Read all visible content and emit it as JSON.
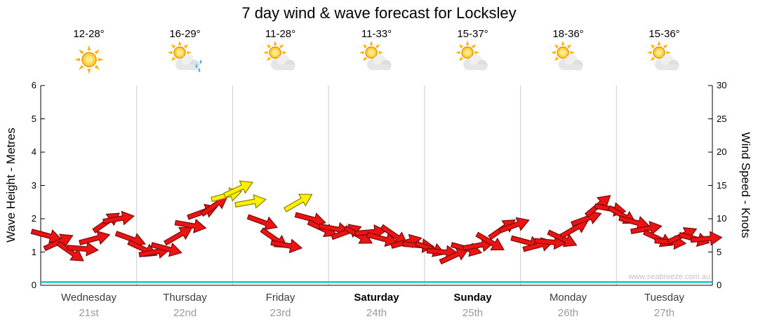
{
  "title": "7 day wind & wave forecast for Locksley",
  "watermark": "www.seabreeze.com.au",
  "axes": {
    "left_label": "Wave Height - Metres",
    "right_label": "Wind Speed - Knots",
    "left_ticks": [
      "0",
      "1",
      "2",
      "3",
      "4",
      "5",
      "6"
    ],
    "right_ticks": [
      "0",
      "5",
      "10",
      "15",
      "20",
      "25",
      "30"
    ]
  },
  "days": [
    {
      "name": "Wednesday",
      "date": "21st",
      "temp": "12-28°",
      "icon": "sun",
      "weekend": false
    },
    {
      "name": "Thursday",
      "date": "22nd",
      "temp": "16-29°",
      "icon": "sun-cloud-rain",
      "weekend": false
    },
    {
      "name": "Friday",
      "date": "23rd",
      "temp": "11-28°",
      "icon": "sun-cloud",
      "weekend": false
    },
    {
      "name": "Saturday",
      "date": "24th",
      "temp": "11-33°",
      "icon": "sun-cloud",
      "weekend": true
    },
    {
      "name": "Sunday",
      "date": "25th",
      "temp": "15-37°",
      "icon": "sun-cloud",
      "weekend": true
    },
    {
      "name": "Monday",
      "date": "26th",
      "temp": "18-36°",
      "icon": "sun-cloud",
      "weekend": false
    },
    {
      "name": "Tuesday",
      "date": "27th",
      "temp": "15-36°",
      "icon": "sun-cloud",
      "weekend": false
    }
  ],
  "chart_data": {
    "type": "wind-arrows-timeseries",
    "title": "7 day wind & wave forecast for Locksley",
    "categories": [
      "Wednesday 21st",
      "Thursday 22nd",
      "Friday 23rd",
      "Saturday 24th",
      "Sunday 25th",
      "Monday 26th",
      "Tuesday 27th"
    ],
    "samples_per_day": 8,
    "ylim_wave_m": [
      0,
      6
    ],
    "ylim_wind_knots": [
      0,
      30
    ],
    "wave_height_m": 0.1,
    "yellow_threshold_knots": 12.5,
    "wind_knots": [
      7.5,
      6.5,
      5,
      5.5,
      7,
      9.5,
      10,
      7,
      5.5,
      5,
      5.5,
      7.5,
      9,
      11,
      12,
      13.5,
      14.5,
      12.5,
      9.5,
      7,
      6,
      12.5,
      10,
      8.5,
      8.5,
      8,
      7.5,
      8,
      7,
      7.5,
      6.5,
      6,
      5.5,
      5,
      4.5,
      5.5,
      6,
      6.5,
      8.5,
      9,
      6.5,
      6,
      6.5,
      7,
      8.5,
      10,
      12,
      11.5,
      10.5,
      9.5,
      8.5,
      7,
      6.5,
      7.5,
      7,
      7
    ],
    "arrow_angles_deg": [
      15,
      -25,
      35,
      5,
      -15,
      -35,
      -10,
      20,
      25,
      -10,
      15,
      -30,
      10,
      -20,
      -35,
      -15,
      -25,
      -10,
      20,
      35,
      10,
      -30,
      15,
      25,
      10,
      -20,
      30,
      -5,
      15,
      35,
      -15,
      5,
      20,
      5,
      -25,
      15,
      -10,
      30,
      -35,
      -20,
      15,
      -15,
      5,
      25,
      -30,
      -20,
      -40,
      10,
      30,
      15,
      -10,
      25,
      5,
      -25,
      15,
      -5
    ],
    "colors": {
      "arrow": "#ec1313",
      "arrow_strong": "#ffef00",
      "arrow_outline": "#7a0a0a",
      "arrow_strong_outline": "#8a8000",
      "wave_line": "#00c8c8",
      "grid": "#cccccc",
      "axis": "#000000"
    }
  }
}
